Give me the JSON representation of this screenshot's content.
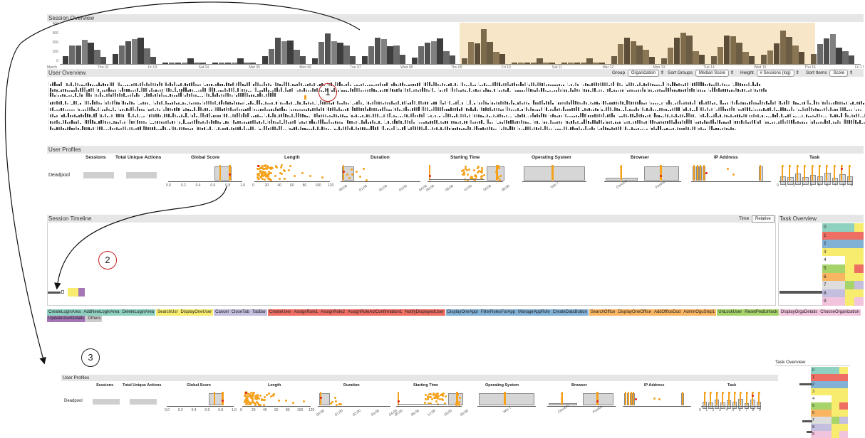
{
  "session_overview": {
    "title": "Session Overview",
    "y_ticks": [
      "400",
      "300",
      "200",
      "100",
      "0"
    ],
    "x_ticks": [
      "March",
      "Thu 02",
      "Fri 03",
      "Sat 04",
      "Mar 05",
      "Mon 06",
      "Tue 07",
      "Wed 08",
      "Thu 09",
      "Fri 10",
      "Sat 11",
      "Mar 12",
      "Mon 13",
      "Tue 14",
      "Wed 15",
      "Thu 16",
      "Fri 17"
    ]
  },
  "user_overview": {
    "title": "User Overview",
    "controls": [
      {
        "label": "Group",
        "value": "Organization"
      },
      {
        "label": "Sort Groups",
        "value": "Median Score"
      },
      {
        "label": "Height",
        "value": "# Sessions (log)"
      },
      {
        "label": "Sort Items",
        "value": "Score"
      }
    ]
  },
  "user_profiles": {
    "title": "User Profiles",
    "columns": [
      "Sessions",
      "Total Unique Actions",
      "Global Score",
      "Length",
      "Duration",
      "Starting Time",
      "Operating System",
      "Browser",
      "IP Address",
      "Task"
    ],
    "user": "Deadpool",
    "score_ticks": [
      "0.0",
      "0.2",
      "0.4",
      "0.6",
      "0.8",
      "1.0"
    ],
    "length_ticks": [
      "0",
      "20",
      "40",
      "60",
      "80",
      "100",
      "120"
    ],
    "duration_ticks": [
      "00:00",
      "01:00",
      "02:00",
      "03:00",
      "04:00"
    ],
    "start_ticks": [
      "00:00",
      "06:00",
      "12:00",
      "18:00",
      "00:00"
    ],
    "os_ticks": [
      "Win 7"
    ],
    "browser_ticks": [
      "Chrome",
      "Firefox"
    ],
    "task_ticks": [
      "0",
      "1",
      "2",
      "3",
      "4",
      "5",
      "6",
      "7",
      "8",
      "9"
    ]
  },
  "session_timeline": {
    "title": "Session Timeline",
    "time_label": "Time",
    "time_value": "Relative"
  },
  "task_overview": {
    "title": "Task Overview",
    "labels": [
      "0",
      "1",
      "2",
      "3",
      "4",
      "5",
      "6",
      "7",
      "8",
      "9"
    ]
  },
  "legend": [
    {
      "group": "green",
      "color": "#8fd1c0",
      "items": [
        "CreateLoginArea",
        "AddNewLoginArea",
        "DeleteLoginArea"
      ]
    },
    {
      "group": "yellow",
      "color": "#f7ec6e",
      "items": [
        "SearchUsr",
        "DisplayOneUser"
      ]
    },
    {
      "group": "lavender",
      "color": "#c4bedf",
      "items": [
        "Cancel",
        "CloseTab",
        "TabBar"
      ]
    },
    {
      "group": "red",
      "color": "#ee6e63",
      "items": [
        "CreateUser",
        "AssignRole1",
        "AssignRole2",
        "AssignRoleActConfirmation1",
        "NotifyDisplayedUser"
      ]
    },
    {
      "group": "blue",
      "color": "#82b1d6",
      "items": [
        "DisplayOneAppl",
        "FilterRolesForApp",
        "ManageAppRole",
        "CreateDataButton"
      ]
    },
    {
      "group": "orange",
      "color": "#f9b561",
      "items": [
        "SearchOffice",
        "DisplayOneOffice",
        "AddOfficeDod",
        "AdminOguStep1"
      ]
    },
    {
      "group": "lime",
      "color": "#a6d36a",
      "items": [
        "UnLockUser",
        "ResetPwdUnlock"
      ]
    },
    {
      "group": "pink",
      "color": "#f2c3dc",
      "items": [
        "DisplayOrgaDetails",
        "ChooseOrganization"
      ]
    },
    {
      "group": "purple",
      "color": "#a476b5",
      "items": [
        "UpdateUserDetails"
      ]
    },
    {
      "group": "gray",
      "color": "#cccccc",
      "items": [
        "Others"
      ]
    }
  ],
  "annotations": [
    "1",
    "2",
    "3"
  ],
  "lower_view": {
    "title": "User Profiles",
    "task_overview_title": "Task Overview"
  },
  "colors": {
    "highlight": "#f8e6c8",
    "histogram": "#4a4a4a",
    "orange": "#f5a11c",
    "red_marker": "#e01b1b"
  }
}
